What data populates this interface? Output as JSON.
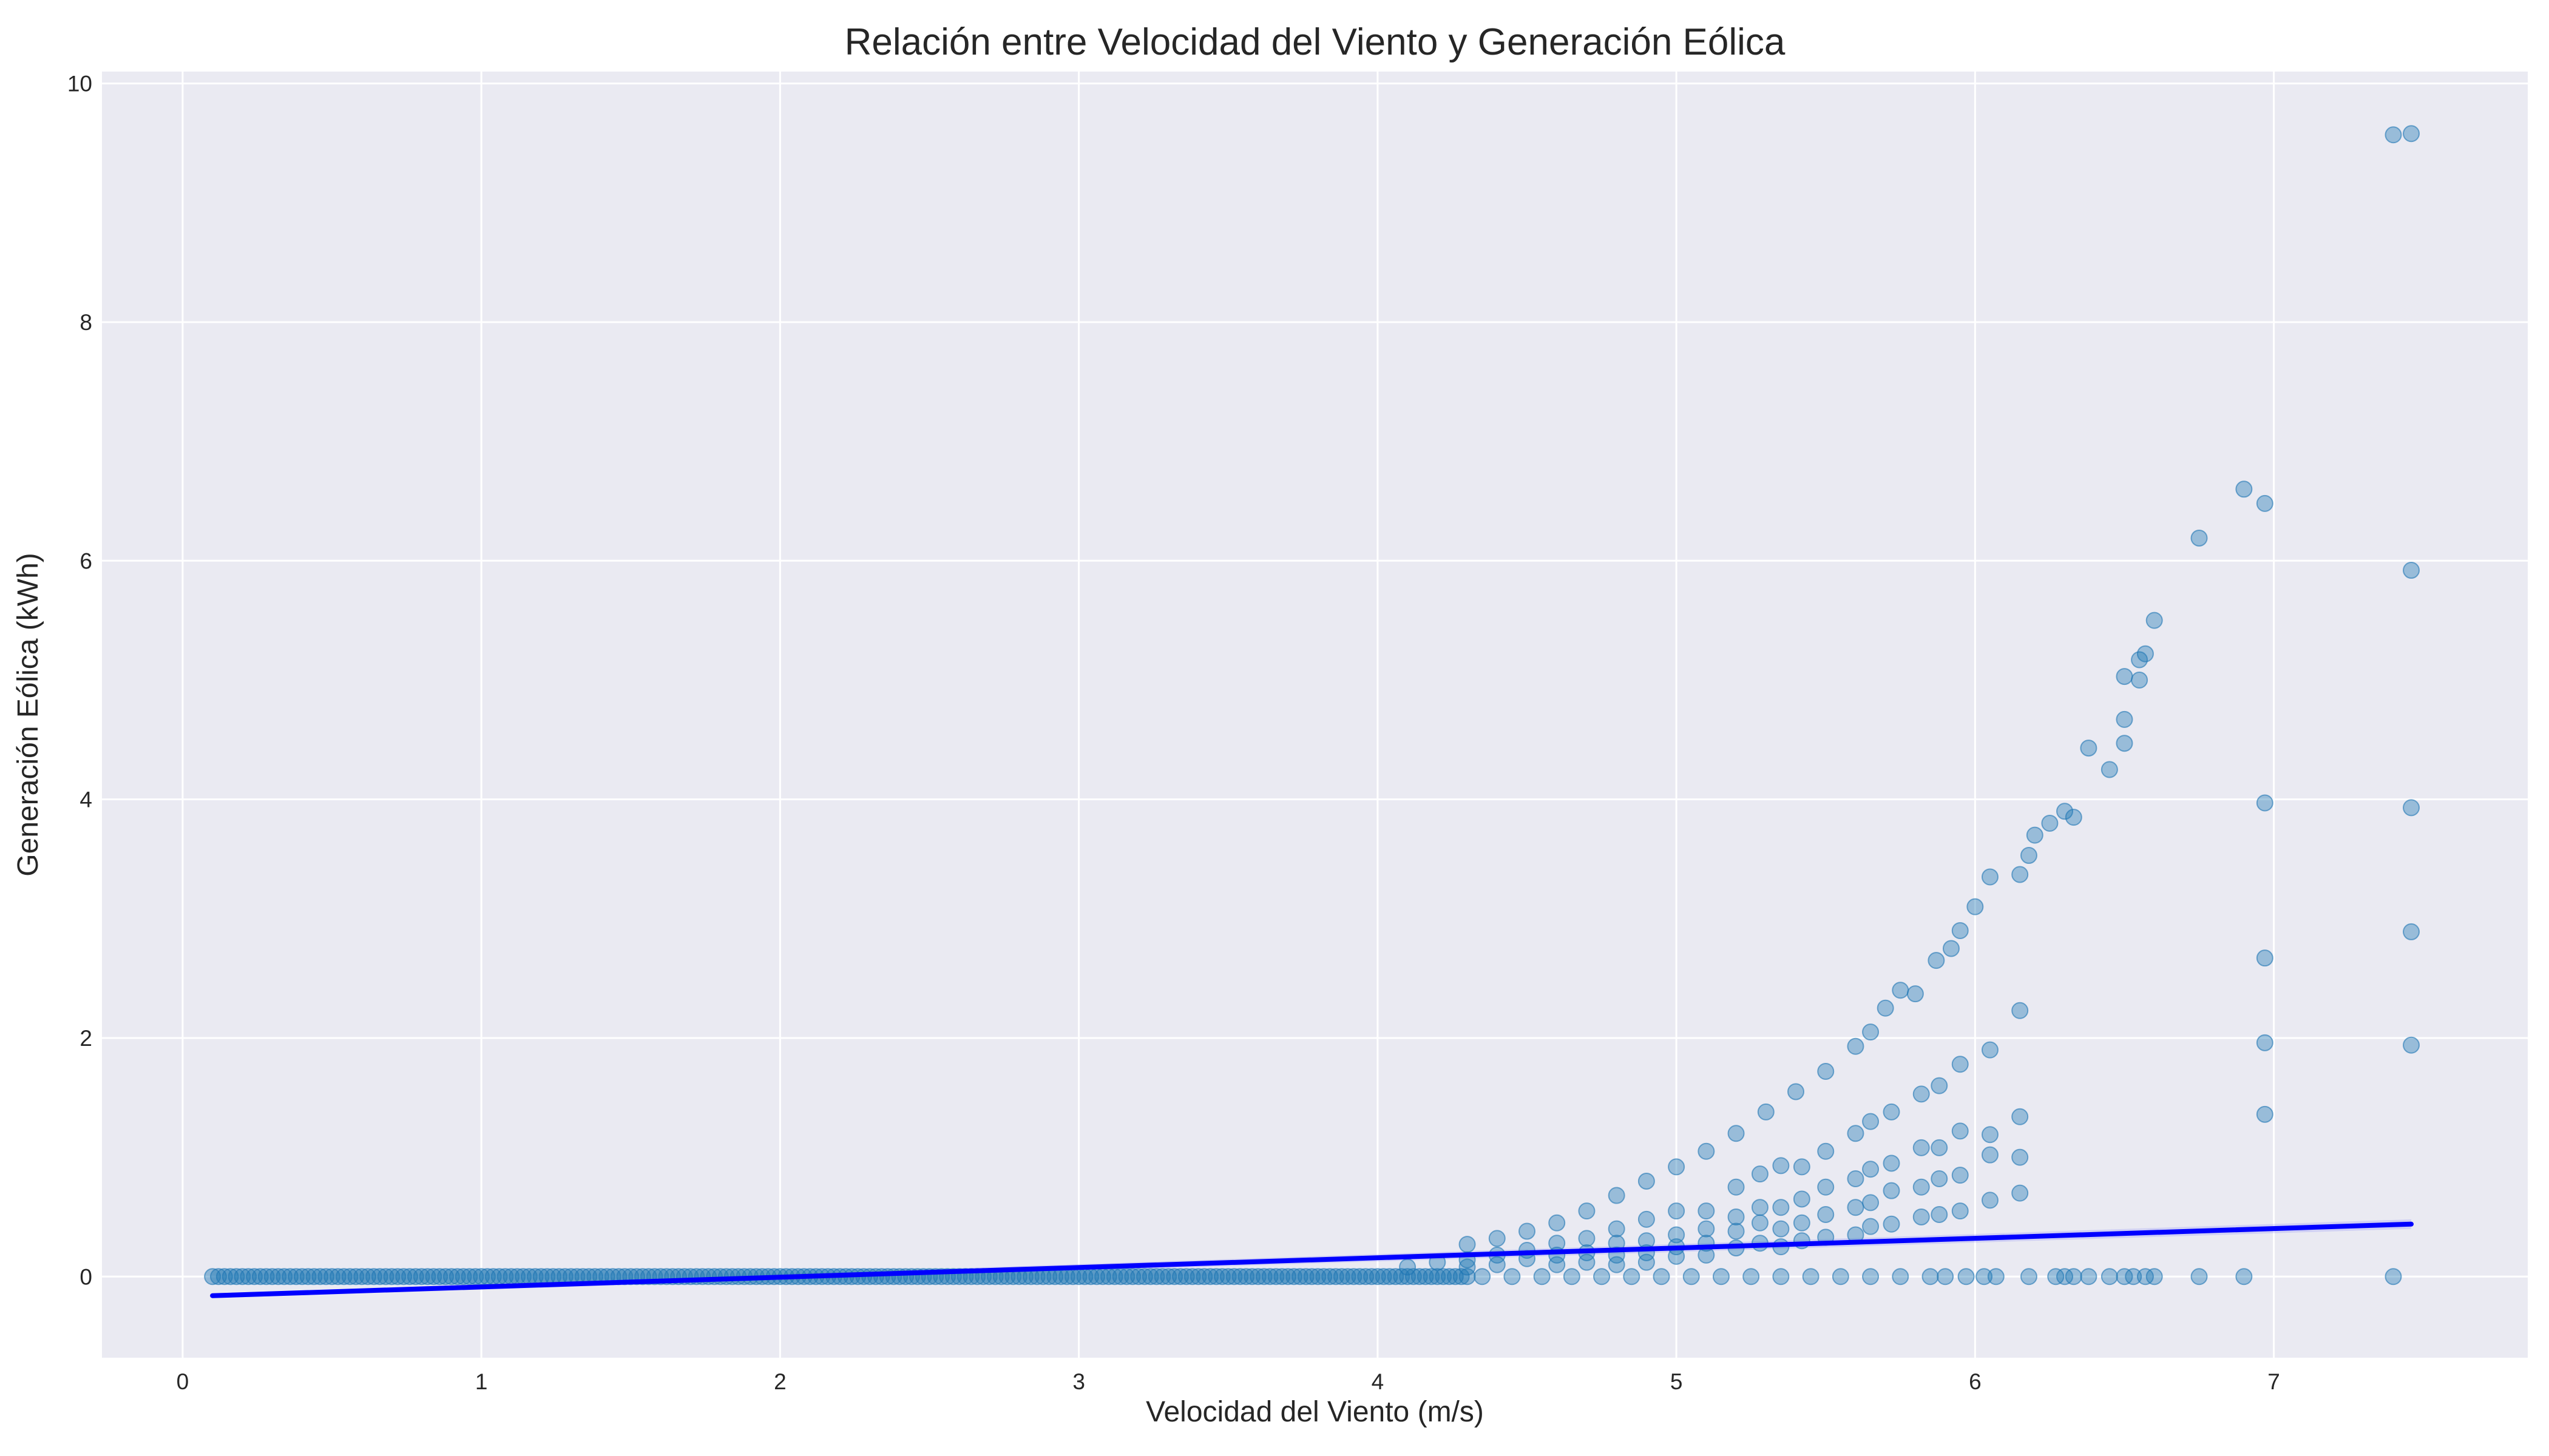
{
  "chart_data": {
    "type": "scatter",
    "title": "Relación entre Velocidad del Viento y Generación Eólica",
    "xlabel": "Velocidad del Viento (m/s)",
    "ylabel": "Generación Eólica (kWh)",
    "xlim": [
      -0.27,
      7.85
    ],
    "ylim": [
      -0.68,
      10.1
    ],
    "x_ticks": [
      "0",
      "1",
      "2",
      "3",
      "4",
      "5",
      "6",
      "7"
    ],
    "y_ticks": [
      "0",
      "2",
      "4",
      "6",
      "8",
      "10"
    ],
    "grid": true,
    "legend": "none",
    "colors": {
      "background": "#eaeaf2",
      "grid": "#ffffff",
      "points": "#1f77b4",
      "regression_line": "#0000ff",
      "confidence_band": "#6b6bff"
    },
    "series": [
      {
        "kind": "scatter",
        "zero_band": {
          "x_range": [
            0.1,
            4.3
          ],
          "y": 0.0
        },
        "points": [
          [
            4.3,
            0.27
          ],
          [
            4.4,
            0.32
          ],
          [
            4.5,
            0.38
          ],
          [
            4.6,
            0.45
          ],
          [
            4.7,
            0.55
          ],
          [
            4.8,
            0.68
          ],
          [
            4.9,
            0.8
          ],
          [
            5.0,
            0.92
          ],
          [
            5.1,
            1.05
          ],
          [
            5.2,
            1.2
          ],
          [
            5.3,
            1.38
          ],
          [
            5.4,
            1.55
          ],
          [
            5.5,
            1.72
          ],
          [
            5.6,
            1.93
          ],
          [
            5.65,
            2.05
          ],
          [
            5.7,
            2.25
          ],
          [
            5.75,
            2.4
          ],
          [
            5.8,
            2.37
          ],
          [
            5.87,
            2.65
          ],
          [
            5.92,
            2.75
          ],
          [
            5.95,
            2.9
          ],
          [
            6.0,
            3.1
          ],
          [
            6.05,
            3.35
          ],
          [
            6.15,
            3.37
          ],
          [
            6.18,
            3.53
          ],
          [
            6.2,
            3.7
          ],
          [
            6.25,
            3.8
          ],
          [
            6.3,
            3.9
          ],
          [
            6.33,
            3.85
          ],
          [
            6.38,
            4.43
          ],
          [
            6.45,
            4.25
          ],
          [
            6.5,
            4.47
          ],
          [
            6.5,
            4.67
          ],
          [
            6.5,
            5.03
          ],
          [
            6.55,
            5.17
          ],
          [
            6.55,
            5.0
          ],
          [
            6.57,
            5.22
          ],
          [
            6.6,
            5.5
          ],
          [
            6.75,
            6.19
          ],
          [
            6.9,
            6.6
          ],
          [
            6.97,
            6.48
          ],
          [
            7.4,
            9.57
          ],
          [
            7.46,
            9.58
          ],
          [
            7.46,
            5.92
          ],
          [
            7.46,
            3.93
          ],
          [
            7.46,
            2.89
          ],
          [
            7.46,
            1.94
          ],
          [
            6.97,
            3.97
          ],
          [
            6.97,
            2.67
          ],
          [
            6.97,
            1.96
          ],
          [
            6.97,
            1.36
          ],
          [
            6.15,
            2.23
          ],
          [
            6.15,
            1.34
          ],
          [
            6.15,
            1.0
          ],
          [
            6.15,
            0.7
          ],
          [
            6.05,
            1.9
          ],
          [
            6.05,
            1.19
          ],
          [
            6.05,
            1.02
          ],
          [
            6.05,
            0.64
          ],
          [
            5.95,
            1.78
          ],
          [
            5.95,
            1.22
          ],
          [
            5.95,
            0.85
          ],
          [
            5.95,
            0.55
          ],
          [
            5.88,
            1.6
          ],
          [
            5.88,
            1.08
          ],
          [
            5.88,
            0.82
          ],
          [
            5.88,
            0.52
          ],
          [
            5.82,
            1.53
          ],
          [
            5.82,
            1.08
          ],
          [
            5.82,
            0.75
          ],
          [
            5.82,
            0.5
          ],
          [
            5.72,
            1.38
          ],
          [
            5.72,
            0.95
          ],
          [
            5.72,
            0.72
          ],
          [
            5.72,
            0.44
          ],
          [
            5.65,
            1.3
          ],
          [
            5.65,
            0.9
          ],
          [
            5.65,
            0.62
          ],
          [
            5.65,
            0.42
          ],
          [
            5.6,
            1.2
          ],
          [
            5.6,
            0.82
          ],
          [
            5.6,
            0.58
          ],
          [
            5.6,
            0.35
          ],
          [
            5.5,
            1.05
          ],
          [
            5.5,
            0.75
          ],
          [
            5.5,
            0.52
          ],
          [
            5.5,
            0.33
          ],
          [
            5.42,
            0.92
          ],
          [
            5.42,
            0.65
          ],
          [
            5.42,
            0.45
          ],
          [
            5.42,
            0.3
          ],
          [
            5.35,
            0.93
          ],
          [
            5.35,
            0.58
          ],
          [
            5.35,
            0.4
          ],
          [
            5.35,
            0.25
          ],
          [
            5.28,
            0.86
          ],
          [
            5.28,
            0.58
          ],
          [
            5.28,
            0.45
          ],
          [
            5.28,
            0.28
          ],
          [
            5.2,
            0.75
          ],
          [
            5.2,
            0.5
          ],
          [
            5.2,
            0.38
          ],
          [
            5.2,
            0.24
          ],
          [
            5.1,
            0.55
          ],
          [
            5.1,
            0.4
          ],
          [
            5.1,
            0.28
          ],
          [
            5.1,
            0.18
          ],
          [
            5.0,
            0.55
          ],
          [
            5.0,
            0.35
          ],
          [
            5.0,
            0.25
          ],
          [
            5.0,
            0.17
          ],
          [
            4.9,
            0.48
          ],
          [
            4.9,
            0.3
          ],
          [
            4.9,
            0.2
          ],
          [
            4.9,
            0.12
          ],
          [
            4.8,
            0.4
          ],
          [
            4.8,
            0.28
          ],
          [
            4.8,
            0.18
          ],
          [
            4.8,
            0.1
          ],
          [
            4.7,
            0.32
          ],
          [
            4.7,
            0.2
          ],
          [
            4.7,
            0.12
          ],
          [
            4.6,
            0.28
          ],
          [
            4.6,
            0.18
          ],
          [
            4.6,
            0.1
          ],
          [
            4.5,
            0.22
          ],
          [
            4.5,
            0.15
          ],
          [
            4.4,
            0.18
          ],
          [
            4.4,
            0.1
          ],
          [
            4.3,
            0.14
          ],
          [
            4.3,
            0.08
          ],
          [
            4.2,
            0.12
          ],
          [
            4.1,
            0.08
          ],
          [
            4.35,
            0.0
          ],
          [
            4.45,
            0.0
          ],
          [
            4.55,
            0.0
          ],
          [
            4.65,
            0.0
          ],
          [
            4.75,
            0.0
          ],
          [
            4.85,
            0.0
          ],
          [
            4.95,
            0.0
          ],
          [
            5.05,
            0.0
          ],
          [
            5.15,
            0.0
          ],
          [
            5.25,
            0.0
          ],
          [
            5.35,
            0.0
          ],
          [
            5.45,
            0.0
          ],
          [
            5.55,
            0.0
          ],
          [
            5.65,
            0.0
          ],
          [
            5.75,
            0.0
          ],
          [
            5.85,
            0.0
          ],
          [
            5.9,
            0.0
          ],
          [
            5.97,
            0.0
          ],
          [
            6.03,
            0.0
          ],
          [
            6.07,
            0.0
          ],
          [
            6.18,
            0.0
          ],
          [
            6.27,
            0.0
          ],
          [
            6.3,
            0.0
          ],
          [
            6.33,
            0.0
          ],
          [
            6.38,
            0.0
          ],
          [
            6.45,
            0.0
          ],
          [
            6.5,
            0.0
          ],
          [
            6.53,
            0.0
          ],
          [
            6.57,
            0.0
          ],
          [
            6.6,
            0.0
          ],
          [
            6.75,
            0.0
          ],
          [
            6.9,
            0.0
          ],
          [
            7.4,
            0.0
          ]
        ]
      },
      {
        "kind": "regression",
        "x": [
          0.1,
          7.46
        ],
        "y": [
          -0.16,
          0.44
        ],
        "ci_half_width": [
          0.02,
          0.04
        ]
      }
    ]
  }
}
